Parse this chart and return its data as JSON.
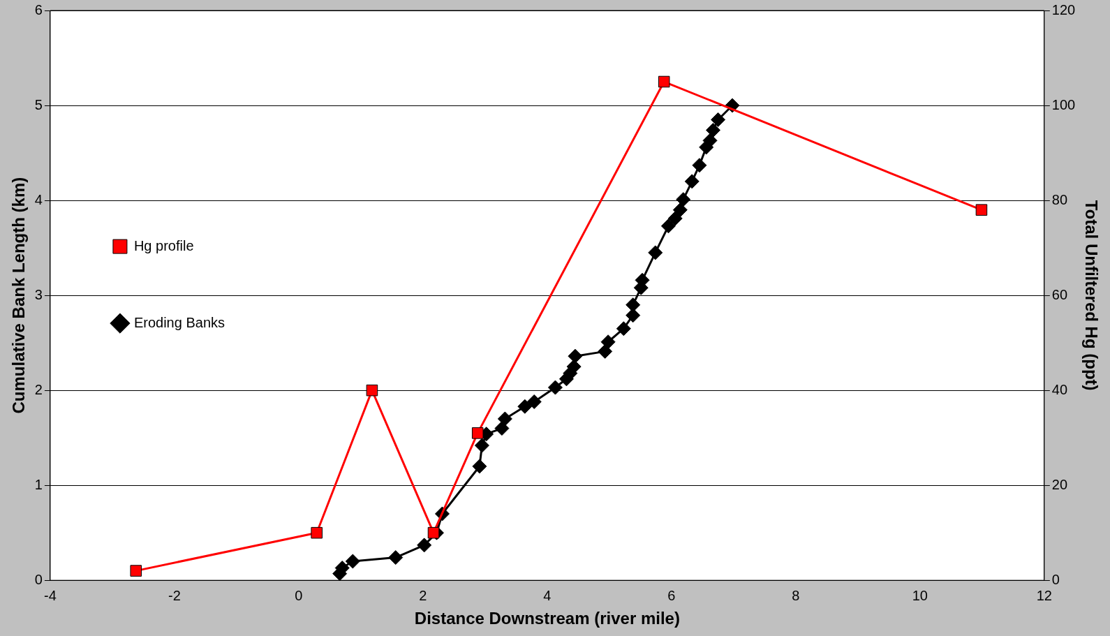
{
  "chart_data": {
    "type": "line",
    "xlabel": "Distance Downstream (river mile)",
    "ylabel": "Cumulative Bank Length (km)",
    "y2label": "Total Unfiltered Hg (ppt)",
    "xlim": [
      -4,
      12
    ],
    "xticks": [
      -4,
      -2,
      0,
      2,
      4,
      6,
      8,
      10,
      12
    ],
    "ylim": [
      0,
      6
    ],
    "yticks": [
      0,
      1,
      2,
      3,
      4,
      5,
      6
    ],
    "y2lim": [
      0,
      120
    ],
    "y2ticks": [
      0,
      20,
      40,
      60,
      80,
      100,
      120
    ],
    "grid": "y",
    "legend": "top",
    "line_style": "solid",
    "series": [
      {
        "name": "Eroding Banks",
        "color": "#000000",
        "marker": "diamond",
        "x": [
          0.66,
          0.7,
          0.87,
          1.56,
          2.02,
          2.22,
          2.31,
          2.91,
          2.95,
          3.02,
          3.27,
          3.32,
          3.64,
          3.79,
          4.13,
          4.31,
          4.37,
          4.43,
          4.45,
          4.93,
          4.98,
          5.23,
          5.38,
          5.38,
          5.51,
          5.53,
          5.74,
          5.95,
          6.06,
          6.14,
          6.19,
          6.33,
          6.45,
          6.56,
          6.62,
          6.67,
          6.75,
          6.98
        ],
        "values": [
          0.07,
          0.13,
          0.2,
          0.24,
          0.37,
          0.5,
          0.7,
          1.2,
          1.42,
          1.54,
          1.6,
          1.7,
          1.83,
          1.88,
          2.03,
          2.12,
          2.18,
          2.25,
          2.36,
          2.41,
          2.51,
          2.65,
          2.79,
          2.9,
          3.08,
          3.16,
          3.45,
          3.73,
          3.81,
          3.9,
          4.01,
          4.2,
          4.37,
          4.56,
          4.63,
          4.74,
          4.85,
          5
        ]
      },
      {
        "name": "Hg profile",
        "color": "#ff0000",
        "marker": "square",
        "axis": "y2",
        "x": [
          -2.62,
          0.29,
          1.18,
          2.17,
          2.88,
          5.88,
          10.99
        ],
        "values": [
          2,
          10,
          40,
          10,
          31,
          105,
          78
        ]
      }
    ]
  }
}
